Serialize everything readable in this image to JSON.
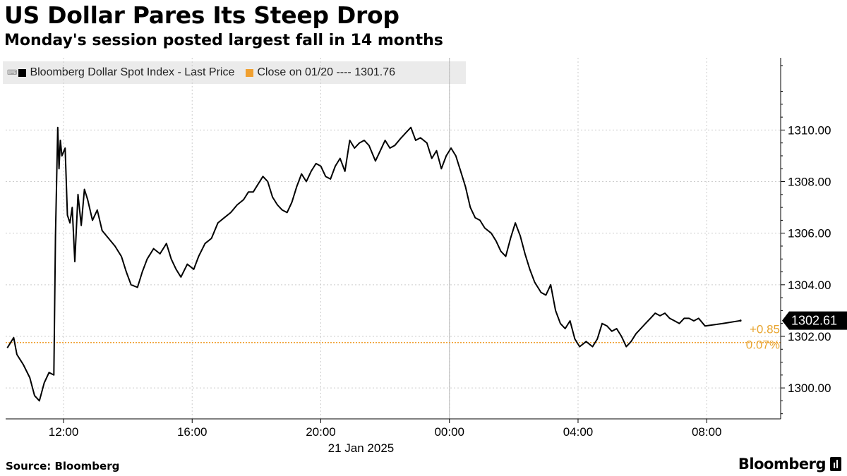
{
  "header": {
    "title": "US Dollar Pares Its Steep Drop",
    "subtitle": "Monday's session posted largest fall in 14 months"
  },
  "legend": {
    "series_label": "Bloomberg Dollar Spot Index - Last Price",
    "close_label": "Close on 01/20 ---- 1301.76"
  },
  "colors": {
    "series": "#000000",
    "close": "#f0a030",
    "gridline": "#cccccc",
    "change": "#e8a530"
  },
  "chart_data": {
    "type": "line",
    "title": "US Dollar Pares Its Steep Drop",
    "subtitle": "Monday's session posted largest fall in 14 months",
    "series_name": "Bloomberg Dollar Spot Index - Last Price",
    "x_unit": "hours since 00:00 on 20 Jan 2025 (local time)",
    "xlim": [
      10.2,
      34.3
    ],
    "ylim": [
      1298.8,
      1312.8
    ],
    "x_ticks": [
      {
        "x": 12,
        "label": "12:00"
      },
      {
        "x": 16,
        "label": "16:00"
      },
      {
        "x": 20,
        "label": "20:00"
      },
      {
        "x": 24,
        "label": "00:00"
      },
      {
        "x": 28,
        "label": "04:00"
      },
      {
        "x": 32,
        "label": "08:00"
      }
    ],
    "y_ticks": [
      {
        "y": 1300,
        "label": "1300.00"
      },
      {
        "y": 1302,
        "label": "1302.00"
      },
      {
        "y": 1304,
        "label": "1304.00"
      },
      {
        "y": 1306,
        "label": "1306.00"
      },
      {
        "y": 1308,
        "label": "1308.00"
      },
      {
        "y": 1310,
        "label": "1310.00"
      }
    ],
    "date_label": "21 Jan 2025",
    "day_divider_x": 24,
    "reference_line": {
      "value": 1301.76,
      "label": "Close on 01/20"
    },
    "last_value": {
      "value": 1302.61,
      "label": "1302.61"
    },
    "change_labels": {
      "abs": "+0.85",
      "pct": "0.07%"
    },
    "points": [
      [
        10.25,
        1301.55
      ],
      [
        10.45,
        1301.95
      ],
      [
        10.55,
        1301.3
      ],
      [
        10.75,
        1300.9
      ],
      [
        10.95,
        1300.4
      ],
      [
        11.1,
        1299.7
      ],
      [
        11.25,
        1299.5
      ],
      [
        11.4,
        1300.2
      ],
      [
        11.55,
        1300.6
      ],
      [
        11.7,
        1300.5
      ],
      [
        11.75,
        1305.9
      ],
      [
        11.82,
        1310.1
      ],
      [
        11.86,
        1308.5
      ],
      [
        11.9,
        1309.6
      ],
      [
        11.95,
        1309.0
      ],
      [
        12.05,
        1309.3
      ],
      [
        12.12,
        1306.7
      ],
      [
        12.2,
        1306.4
      ],
      [
        12.27,
        1307.0
      ],
      [
        12.35,
        1304.9
      ],
      [
        12.45,
        1307.5
      ],
      [
        12.55,
        1306.3
      ],
      [
        12.65,
        1307.7
      ],
      [
        12.75,
        1307.3
      ],
      [
        12.9,
        1306.5
      ],
      [
        13.05,
        1306.9
      ],
      [
        13.2,
        1306.1
      ],
      [
        13.4,
        1305.8
      ],
      [
        13.6,
        1305.5
      ],
      [
        13.8,
        1305.1
      ],
      [
        13.95,
        1304.5
      ],
      [
        14.1,
        1304.0
      ],
      [
        14.3,
        1303.9
      ],
      [
        14.45,
        1304.5
      ],
      [
        14.6,
        1305.0
      ],
      [
        14.8,
        1305.4
      ],
      [
        15.0,
        1305.2
      ],
      [
        15.2,
        1305.6
      ],
      [
        15.35,
        1305.0
      ],
      [
        15.5,
        1304.6
      ],
      [
        15.65,
        1304.3
      ],
      [
        15.85,
        1304.8
      ],
      [
        16.05,
        1304.6
      ],
      [
        16.2,
        1305.1
      ],
      [
        16.4,
        1305.6
      ],
      [
        16.6,
        1305.8
      ],
      [
        16.8,
        1306.4
      ],
      [
        17.0,
        1306.6
      ],
      [
        17.2,
        1306.8
      ],
      [
        17.4,
        1307.1
      ],
      [
        17.6,
        1307.3
      ],
      [
        17.75,
        1307.6
      ],
      [
        17.9,
        1307.6
      ],
      [
        18.05,
        1307.9
      ],
      [
        18.2,
        1308.2
      ],
      [
        18.35,
        1308.0
      ],
      [
        18.5,
        1307.4
      ],
      [
        18.65,
        1307.1
      ],
      [
        18.8,
        1306.9
      ],
      [
        18.95,
        1306.8
      ],
      [
        19.1,
        1307.2
      ],
      [
        19.25,
        1307.8
      ],
      [
        19.4,
        1308.3
      ],
      [
        19.55,
        1308.0
      ],
      [
        19.7,
        1308.4
      ],
      [
        19.85,
        1308.7
      ],
      [
        20.0,
        1308.6
      ],
      [
        20.15,
        1308.2
      ],
      [
        20.3,
        1308.1
      ],
      [
        20.45,
        1308.6
      ],
      [
        20.6,
        1308.9
      ],
      [
        20.75,
        1308.4
      ],
      [
        20.9,
        1309.6
      ],
      [
        21.05,
        1309.3
      ],
      [
        21.2,
        1309.5
      ],
      [
        21.35,
        1309.6
      ],
      [
        21.5,
        1309.4
      ],
      [
        21.7,
        1308.8
      ],
      [
        21.85,
        1309.2
      ],
      [
        22.0,
        1309.6
      ],
      [
        22.15,
        1309.3
      ],
      [
        22.3,
        1309.4
      ],
      [
        22.5,
        1309.7
      ],
      [
        22.65,
        1309.9
      ],
      [
        22.8,
        1310.1
      ],
      [
        22.95,
        1309.6
      ],
      [
        23.1,
        1309.7
      ],
      [
        23.3,
        1309.5
      ],
      [
        23.45,
        1308.9
      ],
      [
        23.6,
        1309.2
      ],
      [
        23.75,
        1308.5
      ],
      [
        23.9,
        1309.0
      ],
      [
        24.05,
        1309.3
      ],
      [
        24.2,
        1309.0
      ],
      [
        24.35,
        1308.4
      ],
      [
        24.5,
        1307.8
      ],
      [
        24.65,
        1307.0
      ],
      [
        24.8,
        1306.6
      ],
      [
        24.95,
        1306.5
      ],
      [
        25.1,
        1306.2
      ],
      [
        25.3,
        1306.0
      ],
      [
        25.45,
        1305.7
      ],
      [
        25.6,
        1305.3
      ],
      [
        25.75,
        1305.1
      ],
      [
        25.9,
        1305.8
      ],
      [
        26.05,
        1306.4
      ],
      [
        26.2,
        1305.9
      ],
      [
        26.35,
        1305.2
      ],
      [
        26.5,
        1304.6
      ],
      [
        26.65,
        1304.1
      ],
      [
        26.85,
        1303.7
      ],
      [
        27.0,
        1303.6
      ],
      [
        27.15,
        1304.0
      ],
      [
        27.3,
        1303.0
      ],
      [
        27.45,
        1302.5
      ],
      [
        27.6,
        1302.3
      ],
      [
        27.75,
        1302.6
      ],
      [
        27.9,
        1301.9
      ],
      [
        28.05,
        1301.6
      ],
      [
        28.25,
        1301.8
      ],
      [
        28.45,
        1301.6
      ],
      [
        28.6,
        1301.9
      ],
      [
        28.75,
        1302.5
      ],
      [
        28.9,
        1302.4
      ],
      [
        29.05,
        1302.2
      ],
      [
        29.2,
        1302.3
      ],
      [
        29.35,
        1302.0
      ],
      [
        29.5,
        1301.6
      ],
      [
        29.65,
        1301.8
      ],
      [
        29.8,
        1302.1
      ],
      [
        29.95,
        1302.3
      ],
      [
        30.1,
        1302.5
      ],
      [
        30.25,
        1302.7
      ],
      [
        30.4,
        1302.9
      ],
      [
        30.55,
        1302.8
      ],
      [
        30.7,
        1302.9
      ],
      [
        30.85,
        1302.7
      ],
      [
        31.0,
        1302.6
      ],
      [
        31.15,
        1302.5
      ],
      [
        31.3,
        1302.7
      ],
      [
        31.45,
        1302.7
      ],
      [
        31.6,
        1302.6
      ],
      [
        31.75,
        1302.7
      ],
      [
        31.95,
        1302.4
      ],
      [
        32.5,
        1302.5
      ],
      [
        33.05,
        1302.61
      ]
    ]
  },
  "footer": {
    "source": "Source: Bloomberg",
    "brand": "Bloomberg"
  }
}
